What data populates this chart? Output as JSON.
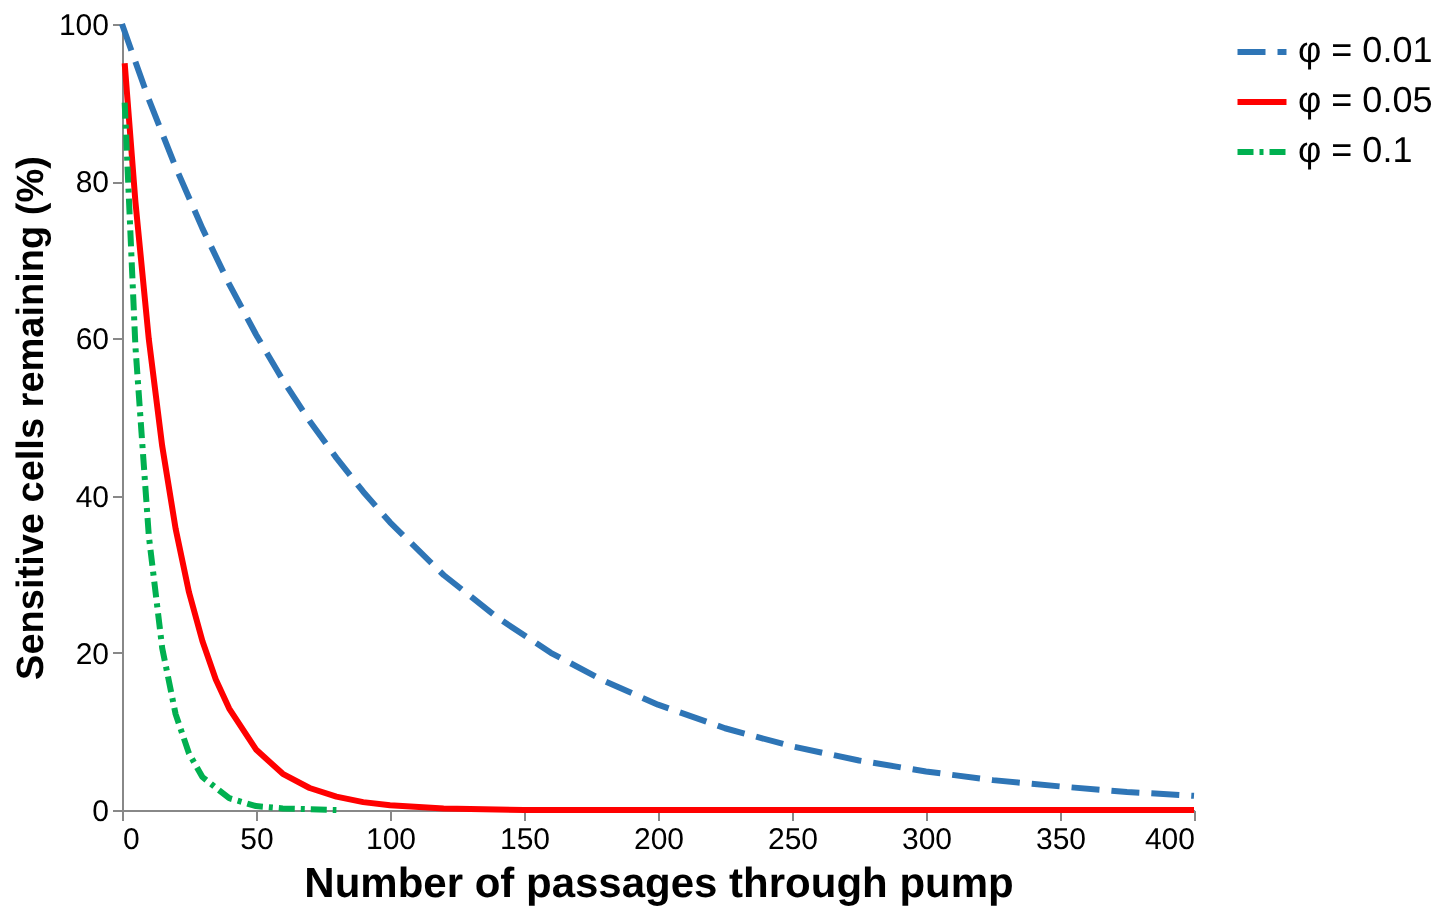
{
  "chart_data": {
    "type": "line",
    "xlabel": "Number of passages through pump",
    "ylabel": "Sensitive cells remaining (%)",
    "xlim": [
      0,
      400
    ],
    "ylim": [
      0,
      100
    ],
    "xticks": [
      0,
      50,
      100,
      150,
      200,
      250,
      300,
      350,
      400
    ],
    "yticks": [
      0,
      20,
      40,
      60,
      80,
      100
    ],
    "grid": false,
    "legend": "right",
    "marker": "none",
    "series": [
      {
        "name": "φ = 0.01",
        "color": "#2e75b6",
        "line_style": "dashed",
        "x": [
          0,
          10,
          20,
          30,
          40,
          50,
          60,
          70,
          80,
          90,
          100,
          120,
          140,
          160,
          180,
          200,
          225,
          250,
          275,
          300,
          325,
          350,
          375,
          400
        ],
        "values": [
          100,
          90.4,
          81.8,
          74,
          66.9,
          60.5,
          54.7,
          49.5,
          44.8,
          40.5,
          36.6,
          29.9,
          24.5,
          20,
          16.4,
          13.4,
          10.4,
          8.1,
          6.3,
          4.9,
          3.8,
          3,
          2.3,
          1.8
        ]
      },
      {
        "name": "φ = 0.05",
        "color": "#ff0000",
        "line_style": "solid",
        "x": [
          1,
          5,
          10,
          15,
          20,
          25,
          30,
          35,
          40,
          50,
          60,
          70,
          80,
          90,
          100,
          120,
          150,
          200,
          300,
          400
        ],
        "values": [
          95,
          77.4,
          59.9,
          46.3,
          35.8,
          27.7,
          21.5,
          16.6,
          12.9,
          7.7,
          4.6,
          2.8,
          1.7,
          1,
          0.6,
          0.2,
          0,
          0,
          0,
          0
        ]
      },
      {
        "name": "φ = 0.1",
        "color": "#00b050",
        "line_style": "dotted",
        "x": [
          1,
          5,
          10,
          15,
          20,
          25,
          30,
          40,
          50,
          60,
          80
        ],
        "values": [
          90,
          59,
          34.9,
          20.6,
          12.2,
          7.2,
          4.2,
          1.5,
          0.5,
          0.2,
          0
        ]
      }
    ]
  }
}
